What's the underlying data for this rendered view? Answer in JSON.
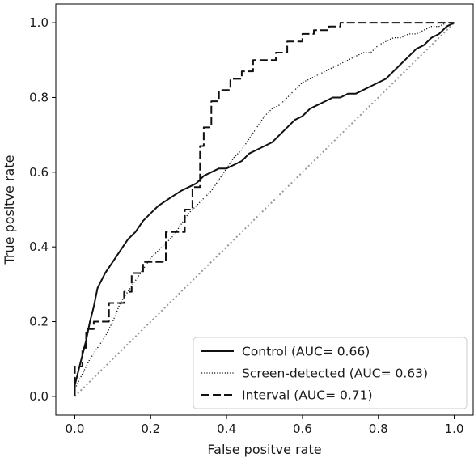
{
  "chart_data": {
    "type": "line",
    "xlabel": "False positve rate",
    "ylabel": "True positve rate",
    "xlim": [
      -0.05,
      1.05
    ],
    "ylim": [
      -0.05,
      1.05
    ],
    "xticks": [
      0.0,
      0.2,
      0.4,
      0.6,
      0.8,
      1.0
    ],
    "yticks": [
      0.0,
      0.2,
      0.4,
      0.6,
      0.8,
      1.0
    ],
    "xtick_labels": [
      "0.0",
      "0.2",
      "0.4",
      "0.6",
      "0.8",
      "1.0"
    ],
    "ytick_labels": [
      "0.0",
      "0.2",
      "0.4",
      "0.6",
      "0.8",
      "1.0"
    ],
    "legend_position": "lower-right",
    "series": [
      {
        "name": "Control (AUC= 0.66)",
        "style": "solid",
        "color": "#111111",
        "x": [
          0,
          0.0,
          0.01,
          0.02,
          0.03,
          0.04,
          0.05,
          0.06,
          0.08,
          0.1,
          0.12,
          0.14,
          0.16,
          0.18,
          0.2,
          0.22,
          0.25,
          0.28,
          0.3,
          0.32,
          0.34,
          0.36,
          0.38,
          0.4,
          0.42,
          0.44,
          0.46,
          0.48,
          0.5,
          0.52,
          0.54,
          0.56,
          0.58,
          0.6,
          0.62,
          0.64,
          0.66,
          0.68,
          0.7,
          0.72,
          0.74,
          0.76,
          0.78,
          0.8,
          0.82,
          0.84,
          0.86,
          0.88,
          0.9,
          0.92,
          0.94,
          0.96,
          0.98,
          1.0
        ],
        "y": [
          0,
          0.03,
          0.07,
          0.11,
          0.15,
          0.2,
          0.24,
          0.29,
          0.33,
          0.36,
          0.39,
          0.42,
          0.44,
          0.47,
          0.49,
          0.51,
          0.53,
          0.55,
          0.56,
          0.57,
          0.59,
          0.6,
          0.61,
          0.61,
          0.62,
          0.63,
          0.65,
          0.66,
          0.67,
          0.68,
          0.7,
          0.72,
          0.74,
          0.75,
          0.77,
          0.78,
          0.79,
          0.8,
          0.8,
          0.81,
          0.81,
          0.82,
          0.83,
          0.84,
          0.85,
          0.87,
          0.89,
          0.91,
          0.93,
          0.94,
          0.96,
          0.97,
          0.99,
          1.0
        ]
      },
      {
        "name": "Screen-detected (AUC= 0.63)",
        "style": "dotted",
        "color": "#111111",
        "x": [
          0,
          0.0,
          0.02,
          0.04,
          0.06,
          0.08,
          0.1,
          0.12,
          0.14,
          0.16,
          0.18,
          0.2,
          0.22,
          0.24,
          0.26,
          0.28,
          0.3,
          0.32,
          0.34,
          0.36,
          0.38,
          0.4,
          0.42,
          0.44,
          0.46,
          0.48,
          0.5,
          0.52,
          0.54,
          0.56,
          0.58,
          0.6,
          0.62,
          0.64,
          0.66,
          0.68,
          0.7,
          0.72,
          0.74,
          0.76,
          0.78,
          0.8,
          0.82,
          0.84,
          0.86,
          0.88,
          0.9,
          0.92,
          0.94,
          0.96,
          0.98,
          1.0
        ],
        "y": [
          0,
          0.02,
          0.06,
          0.1,
          0.13,
          0.16,
          0.2,
          0.25,
          0.28,
          0.31,
          0.34,
          0.37,
          0.39,
          0.41,
          0.43,
          0.46,
          0.49,
          0.51,
          0.53,
          0.55,
          0.58,
          0.61,
          0.64,
          0.66,
          0.69,
          0.72,
          0.75,
          0.77,
          0.78,
          0.8,
          0.82,
          0.84,
          0.85,
          0.86,
          0.87,
          0.88,
          0.89,
          0.9,
          0.91,
          0.92,
          0.92,
          0.94,
          0.95,
          0.96,
          0.96,
          0.97,
          0.97,
          0.98,
          0.99,
          0.99,
          1.0,
          1.0
        ]
      },
      {
        "name": "Interval (AUC= 0.71)",
        "style": "dashed",
        "color": "#111111",
        "x": [
          0,
          0.0,
          0.02,
          0.02,
          0.03,
          0.03,
          0.05,
          0.05,
          0.09,
          0.09,
          0.13,
          0.13,
          0.15,
          0.15,
          0.18,
          0.18,
          0.24,
          0.24,
          0.29,
          0.29,
          0.31,
          0.31,
          0.33,
          0.33,
          0.34,
          0.34,
          0.36,
          0.36,
          0.38,
          0.38,
          0.41,
          0.41,
          0.44,
          0.44,
          0.47,
          0.47,
          0.53,
          0.53,
          0.56,
          0.56,
          0.6,
          0.6,
          0.63,
          0.63,
          0.67,
          0.67,
          0.7,
          0.7,
          1.0
        ],
        "y": [
          0,
          0.08,
          0.08,
          0.13,
          0.13,
          0.18,
          0.18,
          0.2,
          0.2,
          0.25,
          0.25,
          0.28,
          0.28,
          0.33,
          0.33,
          0.36,
          0.36,
          0.44,
          0.44,
          0.5,
          0.5,
          0.56,
          0.56,
          0.67,
          0.67,
          0.72,
          0.72,
          0.79,
          0.79,
          0.82,
          0.82,
          0.85,
          0.85,
          0.87,
          0.87,
          0.9,
          0.9,
          0.92,
          0.92,
          0.95,
          0.95,
          0.97,
          0.97,
          0.98,
          0.98,
          0.99,
          0.99,
          1.0,
          1.0
        ]
      }
    ],
    "reference_line": {
      "style": "dotted",
      "color": "#999999",
      "x": [
        0,
        1
      ],
      "y": [
        0,
        1
      ]
    }
  }
}
